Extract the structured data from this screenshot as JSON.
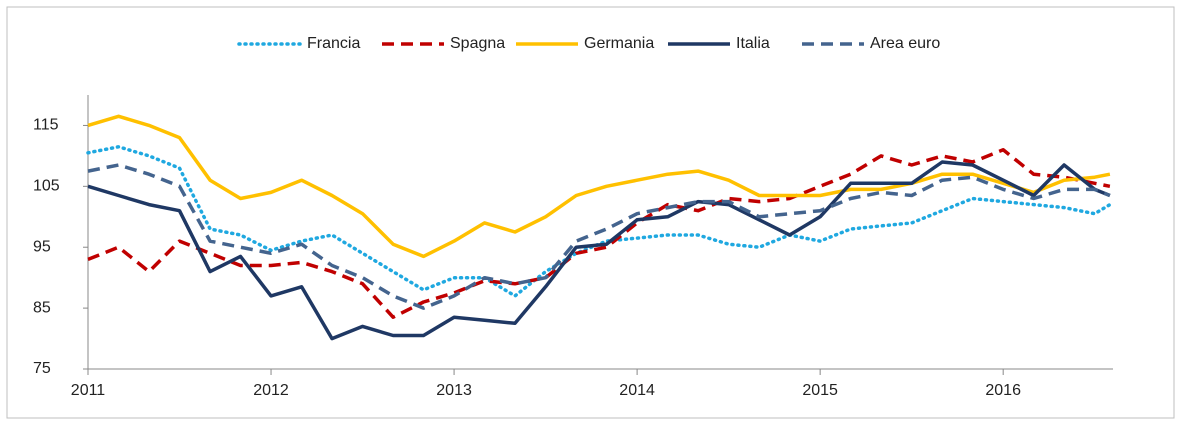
{
  "chart_data": {
    "type": "line",
    "x": [
      2011,
      2011.167,
      2011.333,
      2011.5,
      2011.667,
      2011.833,
      2012,
      2012.167,
      2012.333,
      2012.5,
      2012.667,
      2012.833,
      2013,
      2013.167,
      2013.333,
      2013.5,
      2013.667,
      2013.833,
      2014,
      2014.167,
      2014.333,
      2014.5,
      2014.667,
      2014.833,
      2015,
      2015.167,
      2015.333,
      2015.5,
      2015.667,
      2015.833,
      2016,
      2016.167,
      2016.333,
      2016.5,
      2016.583
    ],
    "xlim": [
      2011,
      2016.6
    ],
    "xticks": [
      2011,
      2012,
      2013,
      2014,
      2015,
      2016
    ],
    "ylim": [
      75,
      120
    ],
    "yticks": [
      75,
      85,
      95,
      105,
      115
    ],
    "grid": false,
    "legend": "top",
    "series": [
      {
        "name": "Francia",
        "color": "#1fa8e0",
        "dash": "dotted",
        "values": [
          110.5,
          111.5,
          110,
          108,
          98,
          97,
          94.5,
          96,
          97,
          94,
          91,
          88,
          90,
          90,
          87,
          91,
          94,
          96,
          96.5,
          97,
          97,
          95.5,
          95,
          97,
          96,
          98,
          98.5,
          99,
          101,
          103,
          102.5,
          102,
          101.5,
          100.5,
          102
        ]
      },
      {
        "name": "Spagna",
        "color": "#c00000",
        "dash": "dashed",
        "values": [
          93,
          95,
          91,
          96,
          94,
          92,
          92,
          92.5,
          91,
          89,
          83.5,
          86,
          87.5,
          89.5,
          89,
          90,
          94,
          95,
          99,
          102,
          101,
          103,
          102.5,
          103,
          105,
          107,
          110,
          108.5,
          110,
          109,
          111,
          107,
          106.5,
          105.5,
          105
        ]
      },
      {
        "name": "Germania",
        "color": "#ffc000",
        "dash": "solid",
        "values": [
          115,
          116.5,
          115,
          113,
          106,
          103,
          104,
          106,
          103.5,
          100.5,
          95.5,
          93.5,
          96,
          99,
          97.5,
          100,
          103.5,
          105,
          106,
          107,
          107.5,
          106,
          103.5,
          103.5,
          103.5,
          104.5,
          104.5,
          105.5,
          107,
          107,
          105.5,
          104,
          106,
          106.5,
          107
        ]
      },
      {
        "name": "Italia",
        "color": "#1f3864",
        "dash": "solid",
        "values": [
          105,
          103.5,
          102,
          101,
          91,
          93.5,
          87,
          88.5,
          80,
          82,
          80.5,
          80.5,
          83.5,
          83,
          82.5,
          88.5,
          95,
          95.5,
          99.5,
          100,
          102.5,
          102,
          99.5,
          97,
          100,
          105.5,
          105.5,
          105.5,
          109,
          108.5,
          106,
          103.5,
          108.5,
          104.5,
          103.5
        ]
      },
      {
        "name": "Area euro",
        "color": "#44648e",
        "dash": "dashed",
        "values": [
          107.5,
          108.5,
          107,
          105,
          96,
          95,
          94,
          95.5,
          92,
          90,
          87,
          85,
          87,
          90,
          89,
          90,
          96,
          98,
          100.5,
          101.5,
          102.5,
          102.5,
          100,
          100.5,
          101,
          103,
          104,
          103.5,
          106,
          106.5,
          104.5,
          103,
          104.5,
          104.5,
          103.5
        ]
      }
    ]
  }
}
